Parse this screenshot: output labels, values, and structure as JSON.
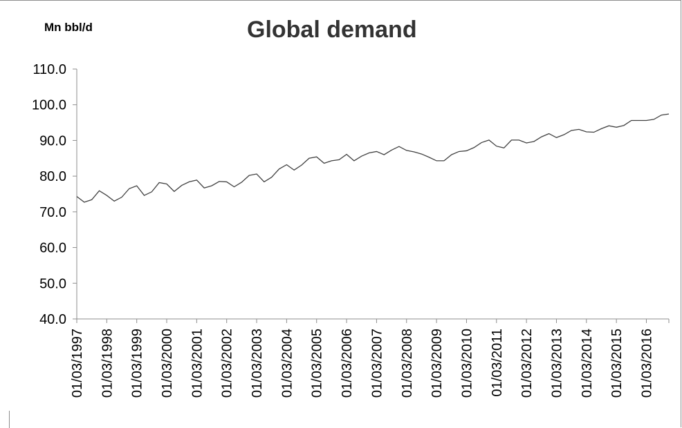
{
  "chart_data": {
    "type": "line",
    "title": "Global demand",
    "unit_label": "Mn bbl/d",
    "ylim": [
      40.0,
      110.0
    ],
    "y_ticks": [
      "40.0",
      "50.0",
      "60.0",
      "70.0",
      "80.0",
      "90.0",
      "100.0",
      "110.0"
    ],
    "x_tick_labels": [
      "01/03/1997",
      "01/03/1998",
      "01/03/1999",
      "01/03/2000",
      "01/03/2001",
      "01/03/2002",
      "01/03/2003",
      "01/03/2004",
      "01/03/2005",
      "01/03/2006",
      "01/03/2007",
      "01/03/2008",
      "01/03/2009",
      "01/03/2010",
      "01/03/2011",
      "01/03/2012",
      "01/03/2013",
      "01/03/2014",
      "01/03/2015",
      "01/03/2016"
    ],
    "grid": false,
    "line_color": "#404040",
    "series": [
      {
        "frequency": "quarterly",
        "start": "1997-Q1",
        "values": [
          74.3,
          72.7,
          73.4,
          75.9,
          74.6,
          73.0,
          74.1,
          76.5,
          77.3,
          74.6,
          75.6,
          78.2,
          77.8,
          75.7,
          77.4,
          78.4,
          78.9,
          76.7,
          77.3,
          78.5,
          78.4,
          77.0,
          78.3,
          80.2,
          80.6,
          78.4,
          79.7,
          82.0,
          83.2,
          81.7,
          83.1,
          85.0,
          85.4,
          83.6,
          84.3,
          84.6,
          86.1,
          84.3,
          85.6,
          86.5,
          86.9,
          86.0,
          87.3,
          88.3,
          87.2,
          86.8,
          86.2,
          85.3,
          84.3,
          84.3,
          86.0,
          86.9,
          87.1,
          88.0,
          89.4,
          90.1,
          88.4,
          87.9,
          90.1,
          90.1,
          89.3,
          89.7,
          91.0,
          91.9,
          90.8,
          91.6,
          92.8,
          93.1,
          92.4,
          92.3,
          93.3,
          94.1,
          93.7,
          94.2,
          95.6,
          95.6,
          95.6,
          95.9,
          97.1,
          97.4
        ]
      }
    ]
  }
}
